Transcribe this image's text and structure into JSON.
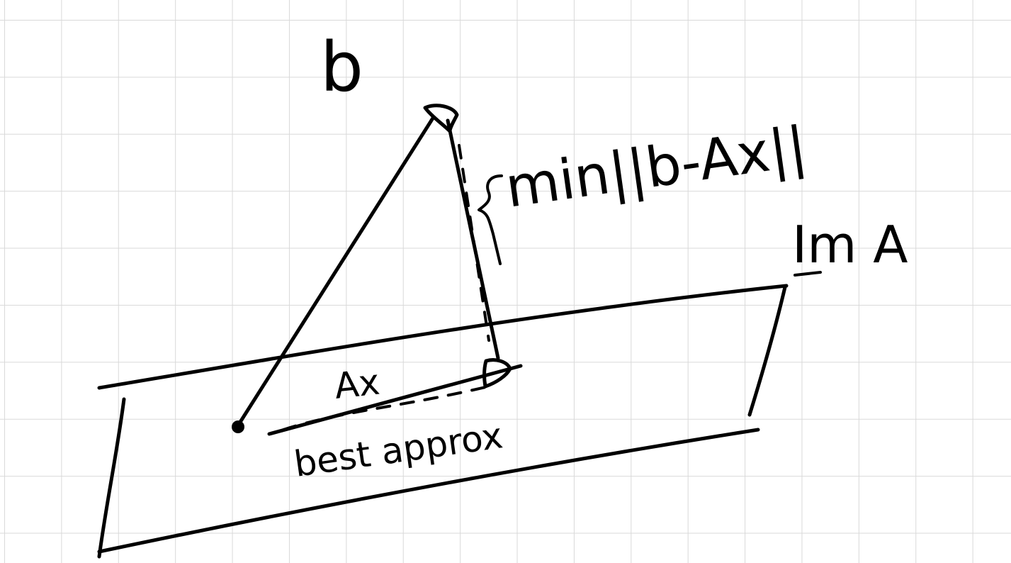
{
  "labels": {
    "b": "b",
    "min_norm": "min||b-Ax||",
    "im_a": "Im A",
    "ax": "Ax",
    "best_approx": "best   approx"
  },
  "colors": {
    "ink": "#000000",
    "grid": "#d9d9d9",
    "background": "#ffffff"
  }
}
